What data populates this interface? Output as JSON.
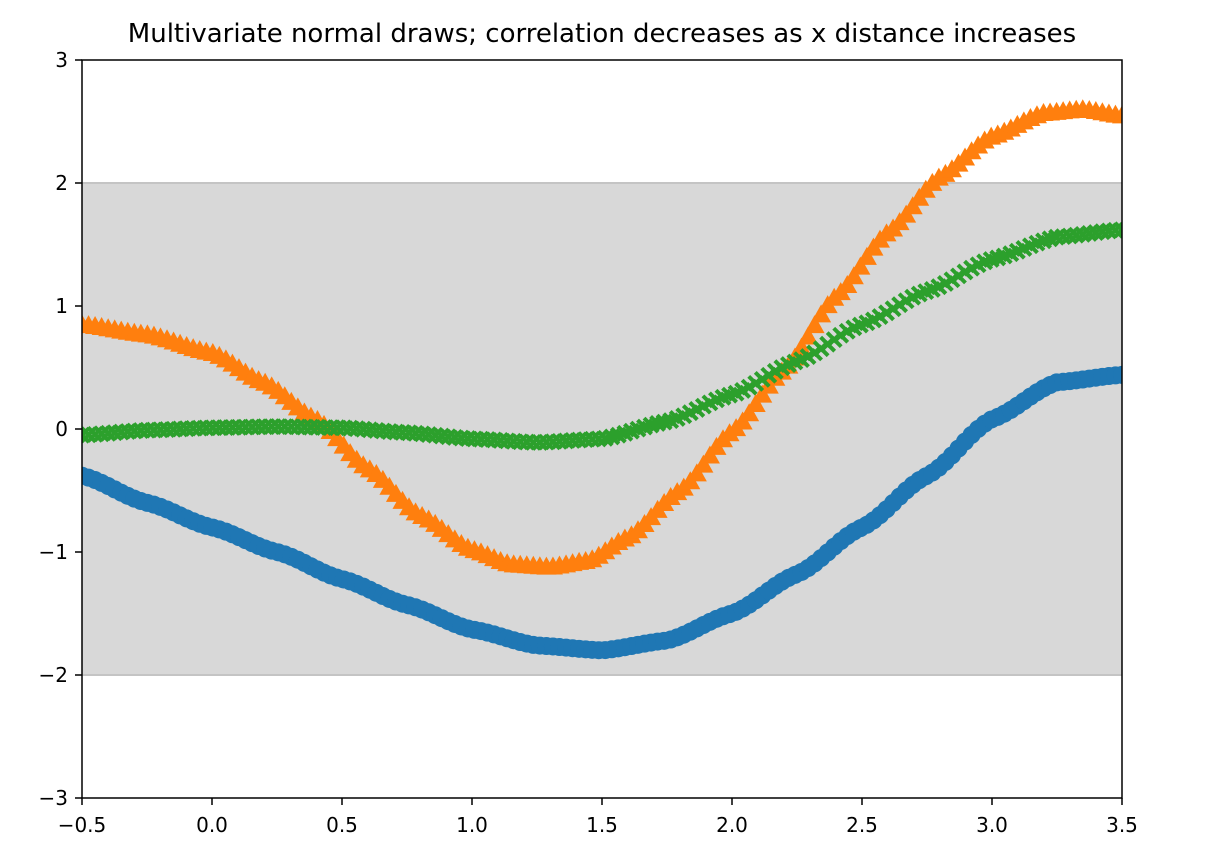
{
  "chart_data": {
    "type": "scatter",
    "title": "Multivariate normal draws; correlation decreases as x distance increases",
    "xlabel": "",
    "ylabel": "",
    "xlim": [
      -0.5,
      3.5
    ],
    "ylim": [
      -3,
      3
    ],
    "x_ticks": [
      -0.5,
      0.0,
      0.5,
      1.0,
      1.5,
      2.0,
      2.5,
      3.0,
      3.5
    ],
    "x_tick_labels": [
      "−0.5",
      "0.0",
      "0.5",
      "1.0",
      "1.5",
      "2.0",
      "2.5",
      "3.0",
      "3.5"
    ],
    "y_ticks": [
      -3,
      -2,
      -1,
      0,
      1,
      2,
      3
    ],
    "y_tick_labels": [
      "−3",
      "−2",
      "−1",
      "0",
      "1",
      "2",
      "3"
    ],
    "band": {
      "y_low": -2,
      "y_high": 2,
      "color": "#d8d8d8",
      "edge_color": "#c4c4c4"
    },
    "grid": false,
    "legend": "none",
    "series": [
      {
        "marker": "circle",
        "color": "#1f77b4",
        "x": [
          -0.5,
          -0.25,
          0.0,
          0.25,
          0.5,
          0.75,
          1.0,
          1.25,
          1.5,
          1.75,
          2.0,
          2.25,
          2.5,
          2.75,
          3.0,
          3.25,
          3.5
        ],
        "y": [
          -0.38,
          -0.6,
          -0.8,
          -1.0,
          -1.22,
          -1.43,
          -1.63,
          -1.76,
          -1.8,
          -1.72,
          -1.5,
          -1.18,
          -0.8,
          -0.38,
          0.08,
          0.38,
          0.44
        ]
      },
      {
        "marker": "triangle-up",
        "color": "#ff7f0e",
        "x": [
          -0.5,
          -0.25,
          0.0,
          0.2,
          0.4,
          0.6,
          0.8,
          1.0,
          1.15,
          1.3,
          1.45,
          1.6,
          1.8,
          2.0,
          2.2,
          2.4,
          2.6,
          2.8,
          3.0,
          3.2,
          3.35,
          3.5
        ],
        "y": [
          0.85,
          0.77,
          0.62,
          0.38,
          0.08,
          -0.32,
          -0.7,
          -0.98,
          -1.1,
          -1.12,
          -1.07,
          -0.88,
          -0.5,
          -0.02,
          0.48,
          1.08,
          1.6,
          2.05,
          2.38,
          2.57,
          2.6,
          2.55
        ]
      },
      {
        "marker": "x",
        "color": "#2ca02c",
        "x": [
          -0.5,
          -0.25,
          0.0,
          0.25,
          0.5,
          0.75,
          1.0,
          1.25,
          1.5,
          1.75,
          2.0,
          2.25,
          2.5,
          2.75,
          3.0,
          3.25,
          3.5
        ],
        "y": [
          -0.05,
          -0.01,
          0.01,
          0.02,
          0.01,
          -0.03,
          -0.08,
          -0.11,
          -0.08,
          0.06,
          0.28,
          0.55,
          0.85,
          1.12,
          1.38,
          1.56,
          1.62
        ]
      }
    ]
  }
}
